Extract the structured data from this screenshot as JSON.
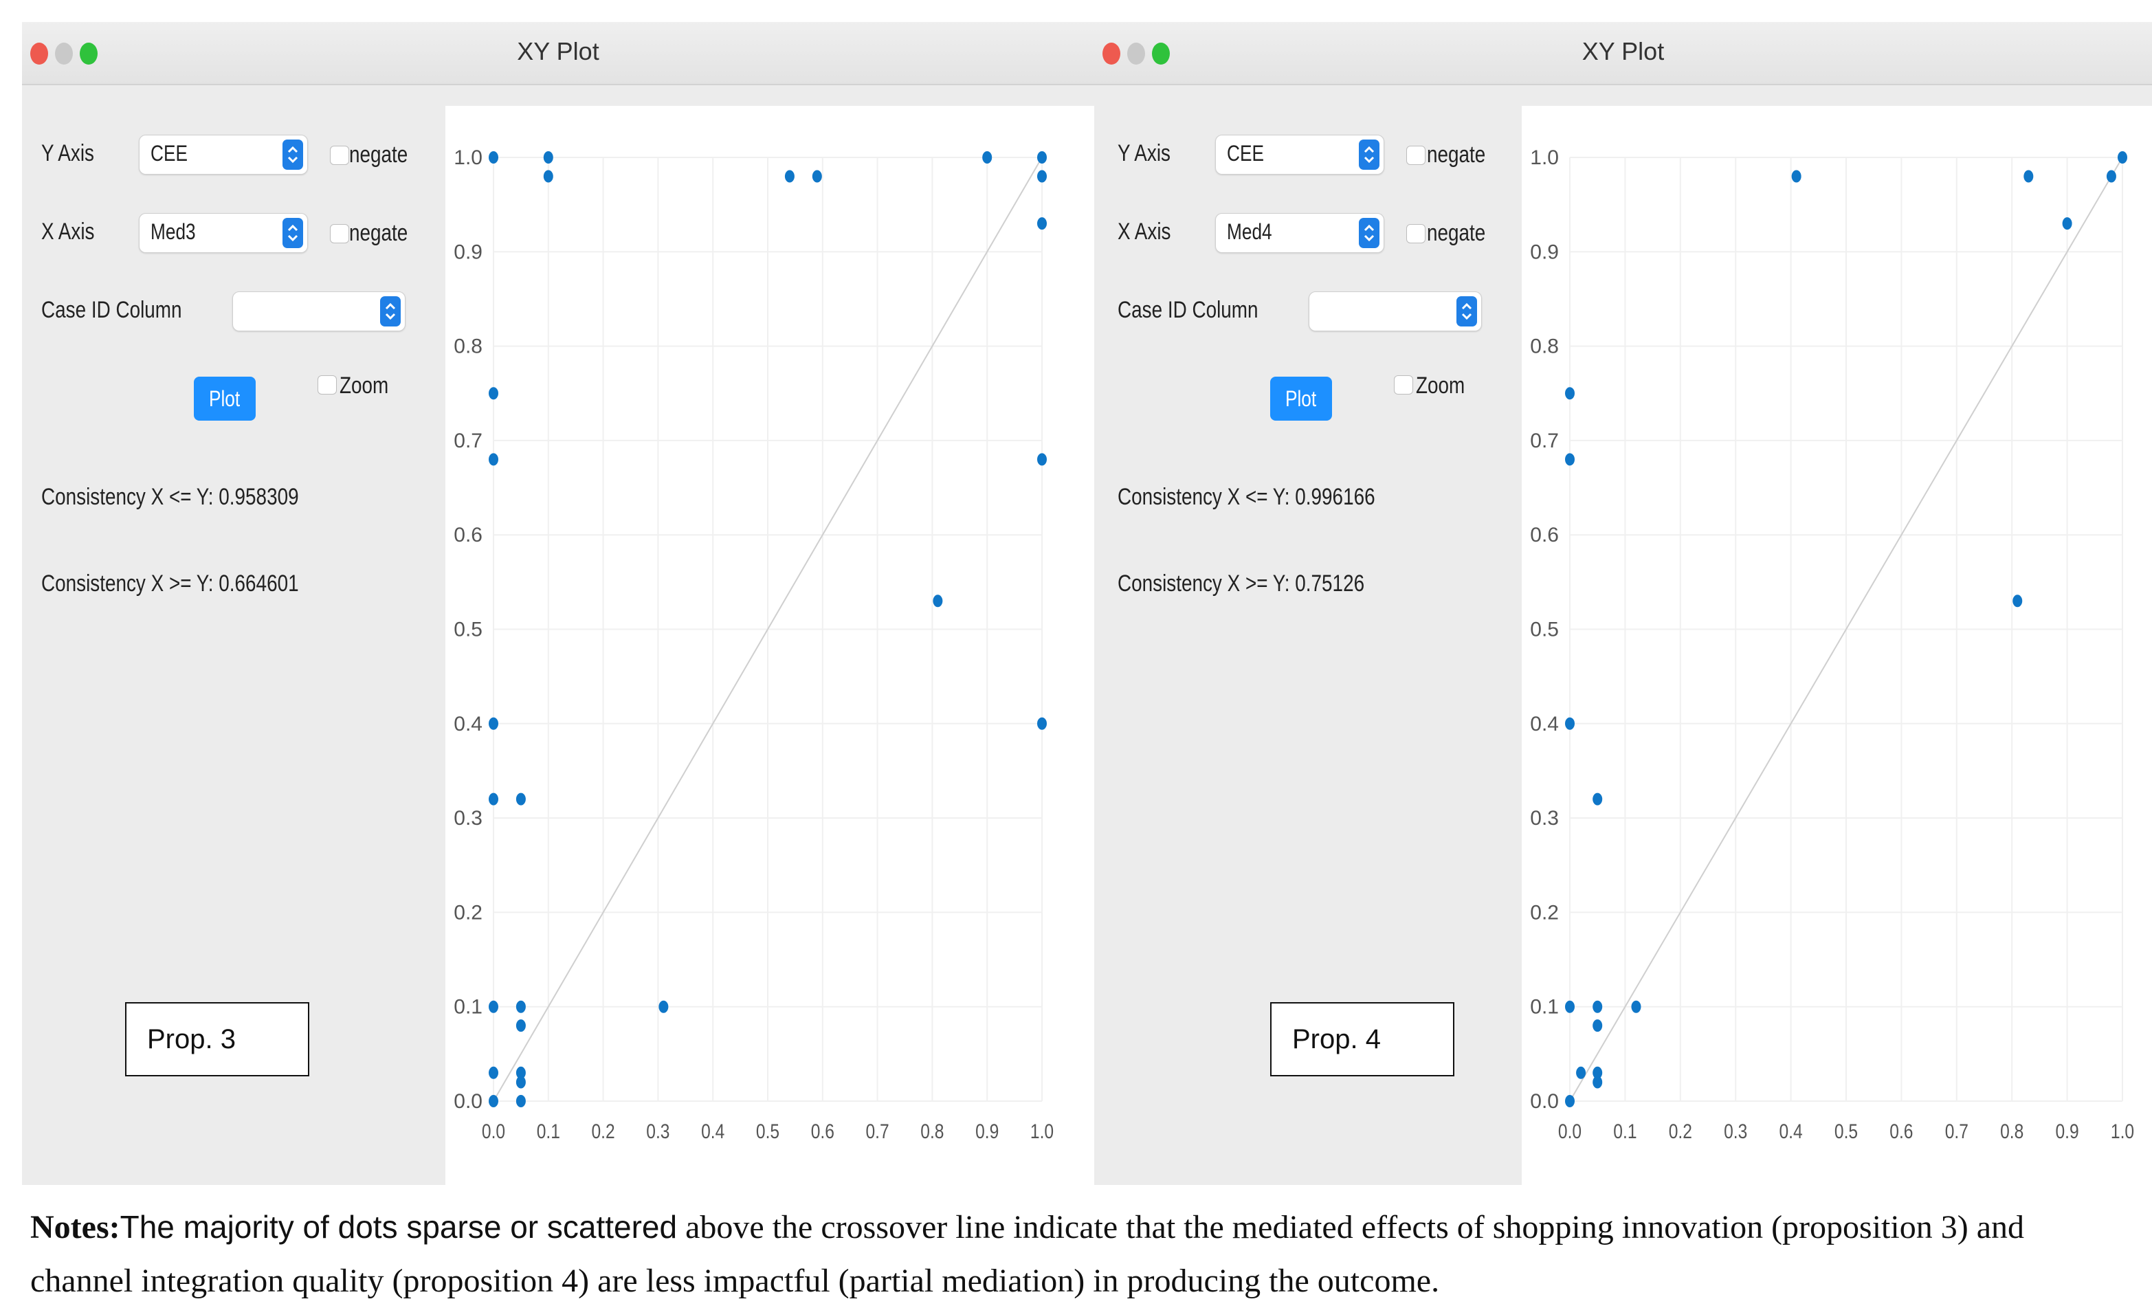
{
  "colors": {
    "accent": "#1d90ff",
    "point": "#0f76c7",
    "window_bg": "#ececec"
  },
  "panels": [
    {
      "title": "XY Plot",
      "y_axis_label": "Y Axis",
      "y_axis_value": "CEE",
      "y_negate_label": "negate",
      "x_axis_label": "X Axis",
      "x_axis_value": "Med3",
      "x_negate_label": "negate",
      "case_id_label": "Case ID Column",
      "case_id_value": "",
      "plot_button": "Plot",
      "zoom_label": "Zoom",
      "consistency_le": "Consistency X <= Y: 0.958309",
      "consistency_ge": "Consistency X >= Y: 0.664601",
      "prop_label": "Prop. 3"
    },
    {
      "title": "XY Plot",
      "y_axis_label": "Y Axis",
      "y_axis_value": "CEE",
      "y_negate_label": "negate",
      "x_axis_label": "X Axis",
      "x_axis_value": "Med4",
      "x_negate_label": "negate",
      "case_id_label": "Case ID Column",
      "case_id_value": "",
      "plot_button": "Plot",
      "zoom_label": "Zoom",
      "consistency_le": "Consistency X <= Y: 0.996166",
      "consistency_ge": "Consistency X >= Y: 0.75126",
      "prop_label": "Prop. 4"
    }
  ],
  "chart_data": [
    {
      "type": "scatter",
      "xlim": [
        0,
        1
      ],
      "ylim": [
        0,
        1
      ],
      "grid": true,
      "diagonal": true,
      "x_ticks": [
        "0.0",
        "0.1",
        "0.2",
        "0.3",
        "0.4",
        "0.5",
        "0.6",
        "0.7",
        "0.8",
        "0.9",
        "1.0"
      ],
      "y_ticks": [
        "0.0",
        "0.1",
        "0.2",
        "0.3",
        "0.4",
        "0.5",
        "0.6",
        "0.7",
        "0.8",
        "0.9",
        "1.0"
      ],
      "points": [
        [
          0,
          1.0
        ],
        [
          0.1,
          1.0
        ],
        [
          0.1,
          0.98
        ],
        [
          0.54,
          0.98
        ],
        [
          0.59,
          0.98
        ],
        [
          0.9,
          1.0
        ],
        [
          1.0,
          1.0
        ],
        [
          1.0,
          0.98
        ],
        [
          1.0,
          0.93
        ],
        [
          0,
          0.75
        ],
        [
          0,
          0.68
        ],
        [
          1.0,
          0.68
        ],
        [
          0.81,
          0.53
        ],
        [
          0,
          0.4
        ],
        [
          1.0,
          0.4
        ],
        [
          0,
          0.32
        ],
        [
          0.05,
          0.32
        ],
        [
          0,
          0.1
        ],
        [
          0.05,
          0.1
        ],
        [
          0.05,
          0.08
        ],
        [
          0.31,
          0.1
        ],
        [
          0,
          0.03
        ],
        [
          0.05,
          0.03
        ],
        [
          0.05,
          0.02
        ],
        [
          0,
          0.0
        ],
        [
          0.05,
          0.0
        ]
      ]
    },
    {
      "type": "scatter",
      "xlim": [
        0,
        1
      ],
      "ylim": [
        0,
        1
      ],
      "grid": true,
      "diagonal": true,
      "x_ticks": [
        "0.0",
        "0.1",
        "0.2",
        "0.3",
        "0.4",
        "0.5",
        "0.6",
        "0.7",
        "0.8",
        "0.9",
        "1.0"
      ],
      "y_ticks": [
        "0.0",
        "0.1",
        "0.2",
        "0.3",
        "0.4",
        "0.5",
        "0.6",
        "0.7",
        "0.8",
        "0.9",
        "1.0"
      ],
      "points": [
        [
          1.0,
          1.0
        ],
        [
          0.41,
          0.98
        ],
        [
          0.83,
          0.98
        ],
        [
          0.98,
          0.98
        ],
        [
          0.9,
          0.93
        ],
        [
          0,
          0.75
        ],
        [
          0,
          0.68
        ],
        [
          0.81,
          0.53
        ],
        [
          0,
          0.4
        ],
        [
          0.05,
          0.32
        ],
        [
          0,
          0.1
        ],
        [
          0.05,
          0.1
        ],
        [
          0.05,
          0.08
        ],
        [
          0.12,
          0.1
        ],
        [
          0.02,
          0.03
        ],
        [
          0.05,
          0.03
        ],
        [
          0.05,
          0.02
        ],
        [
          0,
          0.0
        ]
      ]
    }
  ],
  "notes": {
    "label": "Notes:",
    "text_sans": "The majority of dots sparse or scattered",
    "text_serif": " above the crossover line indicate that the mediated effects of shopping innovation (proposition 3) and channel integration quality (proposition 4) are less impactful (partial mediation) in producing the outcome."
  }
}
